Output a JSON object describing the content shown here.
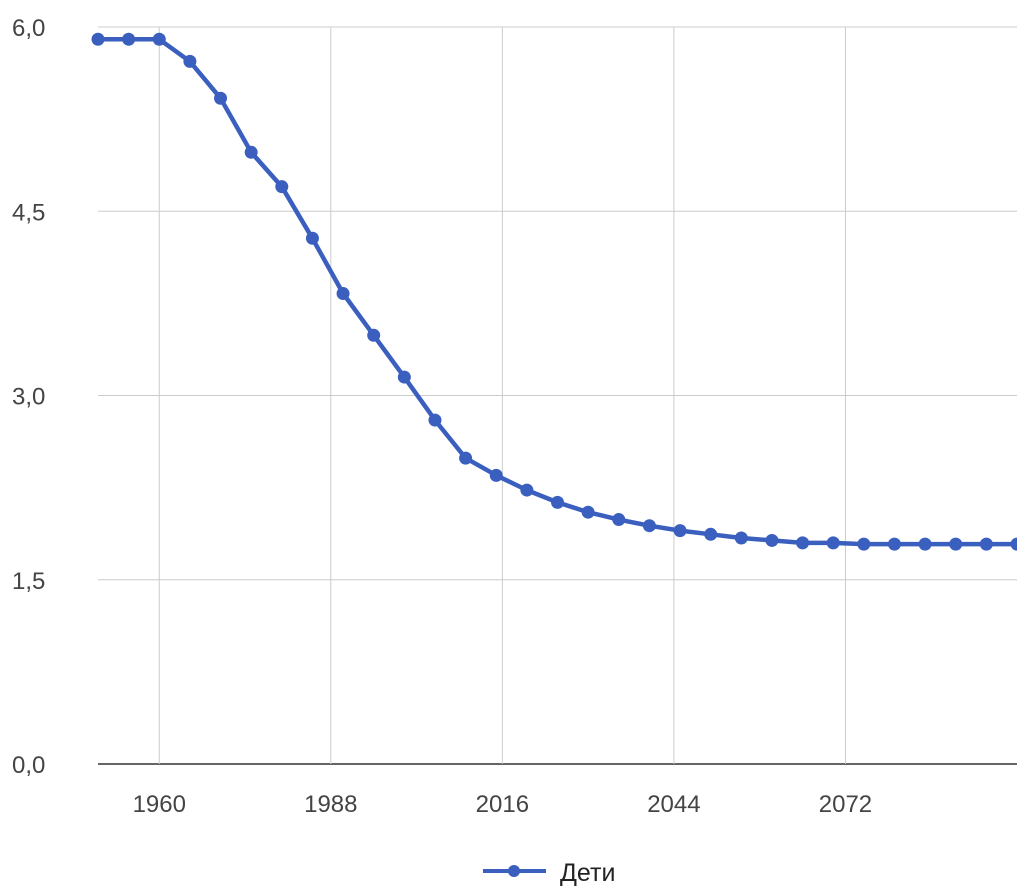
{
  "chart_data": {
    "type": "line",
    "title": "",
    "xlabel": "",
    "ylabel": "",
    "x": [
      1950,
      1955,
      1960,
      1965,
      1970,
      1975,
      1980,
      1985,
      1990,
      1995,
      2000,
      2005,
      2010,
      2015,
      2020,
      2025,
      2030,
      2035,
      2040,
      2045,
      2050,
      2055,
      2060,
      2065,
      2070,
      2075,
      2080,
      2085,
      2090,
      2095,
      2100
    ],
    "series": [
      {
        "name": "Дети",
        "color": "#3a5fbf",
        "values": [
          5.9,
          5.9,
          5.9,
          5.72,
          5.42,
          4.98,
          4.7,
          4.28,
          3.83,
          3.49,
          3.15,
          2.8,
          2.49,
          2.35,
          2.23,
          2.13,
          2.05,
          1.99,
          1.94,
          1.9,
          1.87,
          1.84,
          1.82,
          1.8,
          1.8,
          1.79,
          1.79,
          1.79,
          1.79,
          1.79,
          1.79
        ]
      }
    ],
    "xlim": [
      1950,
      2100
    ],
    "ylim": [
      0,
      6
    ],
    "x_ticks": [
      1960,
      1988,
      2016,
      2044,
      2072
    ],
    "y_ticks": [
      0,
      1.5,
      3,
      4.5,
      6
    ],
    "y_tick_labels": [
      "0,0",
      "1,5",
      "3,0",
      "4,5",
      "6,0"
    ],
    "grid": true,
    "legend_position": "bottom"
  }
}
